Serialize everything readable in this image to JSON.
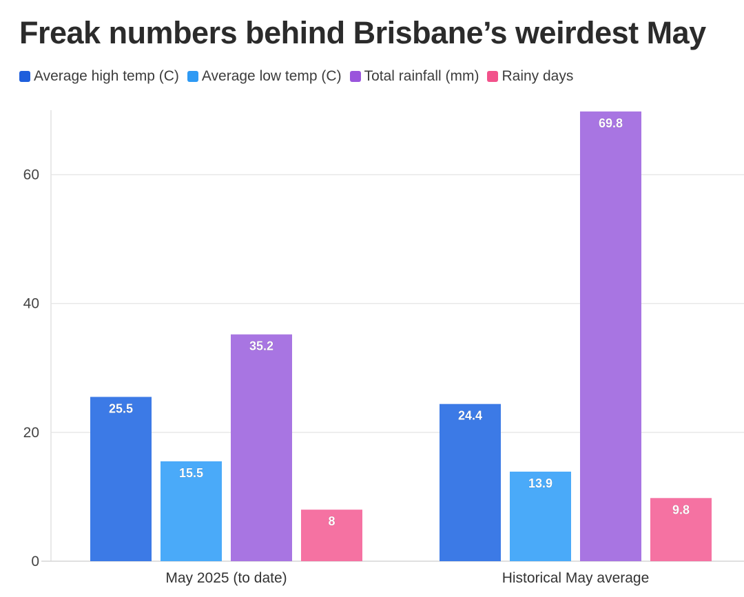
{
  "title": "Freak numbers behind Brisbane’s weirdest May",
  "chart_data": {
    "type": "bar",
    "categories": [
      "May 2025 (to date)",
      "Historical May average"
    ],
    "series": [
      {
        "name": "Average high temp (C)",
        "values": [
          25.5,
          24.4
        ],
        "color": "#3c7ae6"
      },
      {
        "name": "Average low temp (C)",
        "values": [
          15.5,
          13.9
        ],
        "color": "#4aaaf9"
      },
      {
        "name": "Total rainfall (mm)",
        "values": [
          35.2,
          69.8
        ],
        "color": "#a875e2"
      },
      {
        "name": "Rainy days",
        "values": [
          8,
          9.8
        ],
        "color": "#f572a2"
      }
    ],
    "y_ticks": [
      "0",
      "20",
      "40",
      "60"
    ],
    "ylim": [
      0,
      70
    ],
    "grid": true,
    "legend_position": "top-left",
    "xlabel": "",
    "ylabel": ""
  }
}
